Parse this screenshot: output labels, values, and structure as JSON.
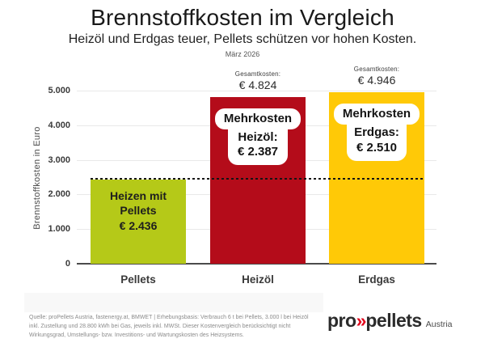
{
  "header": {
    "title": "Brennstoffkosten im Vergleich",
    "subtitle": "Heizöl und Erdgas teuer, Pellets schützen vor hohen Kosten.",
    "date": "März 2026"
  },
  "chart_data": {
    "type": "bar",
    "title": "Brennstoffkosten im Vergleich",
    "subtitle": "Heizöl und Erdgas teuer, Pellets schützen vor hohen Kosten.",
    "period": "März 2026",
    "ylabel": "Brennstoffkosten in Euro",
    "xlabel": "",
    "ylim": [
      0,
      5000
    ],
    "grid": true,
    "yticks": [
      "5.000",
      "4.000",
      "3.000",
      "2.000",
      "1.000",
      "0"
    ],
    "categories": [
      "Pellets",
      "Heizöl",
      "Erdgas"
    ],
    "values": [
      2436,
      4824,
      4946
    ],
    "reference_line": {
      "value": 2436,
      "style": "dashed",
      "color": "#141414"
    },
    "bars": [
      {
        "category": "Pellets",
        "value": 2436,
        "color": "#b5c918",
        "label_style": "plain",
        "label_lines": [
          "Heizen mit",
          "Pellets",
          "€ 2.436"
        ]
      },
      {
        "category": "Heizöl",
        "value": 4824,
        "color": "#b40c1a",
        "label_style": "bubble",
        "total_label": "Gesamtkosten:",
        "total_value": "€ 4.824",
        "label_lines": [
          "Mehrkosten",
          "Heizöl:",
          "€ 2.387"
        ]
      },
      {
        "category": "Erdgas",
        "value": 4946,
        "color": "#ffc907",
        "label_style": "bubble",
        "total_label": "Gesamtkosten:",
        "total_value": "€ 4.946",
        "label_lines": [
          "Mehrkosten",
          "Erdgas:",
          "€ 2.510"
        ]
      }
    ]
  },
  "footer": {
    "source": "Quelle: proPellets Austria, fastenergy.at, BMWET | Erhebungsbasis: Verbrauch 6 t bei Pellets, 3.000 l bei Heizöl inkl. Zustellung und 28.800 kWh bei Gas, jeweils inkl. MWSt. Dieser Kostenvergleich berücksichtigt nicht Wirkungsgrad, Umstellungs- bzw. Investitions- und Wartungskosten des Heizsystems.",
    "logo": {
      "pro": "pro",
      "chevrons": "»",
      "pellets": "pellets",
      "country": "Austria",
      "accent_color": "#e2001a"
    }
  }
}
